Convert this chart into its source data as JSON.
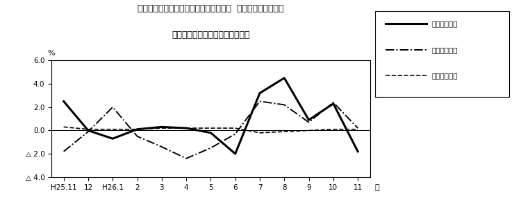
{
  "title_line1": "第４図　賃金、労働時間、常用雇用指数  対前年同月比の推移",
  "title_line2": "（規模５人以上　　調査産業計）",
  "ylabel": "%",
  "xlabel_text": "月",
  "x_labels": [
    "H25.11",
    "12",
    "H26.1",
    "2",
    "3",
    "4",
    "5",
    "6",
    "7",
    "8",
    "9",
    "10",
    "11"
  ],
  "ylim": [
    -4.0,
    6.0
  ],
  "yticks": [
    -4.0,
    -2.0,
    0.0,
    2.0,
    4.0,
    6.0
  ],
  "ytick_labels": [
    "△ 4.0",
    "△ 2.0",
    "0.0",
    "2.0",
    "4.0",
    "6.0"
  ],
  "series_names": [
    "現金給与総額",
    "総実労働時間",
    "常用雇用指数"
  ],
  "series_values": [
    [
      2.5,
      0.0,
      -0.7,
      0.1,
      0.3,
      0.2,
      -0.2,
      -2.0,
      3.2,
      4.5,
      0.9,
      2.3,
      -1.8
    ],
    [
      -1.8,
      -0.1,
      2.0,
      -0.5,
      -1.4,
      -2.4,
      -1.5,
      -0.3,
      2.5,
      2.2,
      0.7,
      2.4,
      0.2
    ],
    [
      0.3,
      0.1,
      0.1,
      0.1,
      0.2,
      0.2,
      0.2,
      0.2,
      -0.2,
      -0.1,
      0.0,
      0.1,
      0.1
    ]
  ],
  "series_linestyles": [
    "solid",
    "dashdot",
    "dashed"
  ],
  "series_linewidths": [
    2.2,
    1.4,
    1.2
  ],
  "background_color": "#ffffff",
  "plot_bg_color": "#ffffff"
}
